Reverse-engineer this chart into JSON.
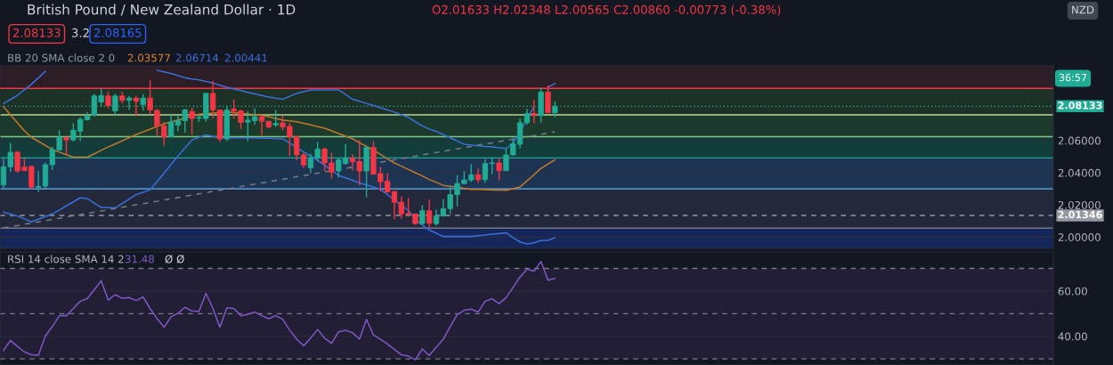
{
  "chart_data": [
    {
      "type": "candlestick",
      "title": "British Pound / New Zealand Dollar · 1D",
      "annotations": [
        "O2.01633 H2.02348 L2.00565 C2.00860 -0.00773 (-0.38%)",
        "2.08133",
        "3.2",
        "2.08165",
        "BB 20 SMA close 2 0",
        "2.03577",
        "2.06714",
        "2.00441",
        "36:57",
        "NZD"
      ],
      "categories": [
        null,
        null,
        null,
        null,
        null,
        null,
        null,
        null,
        null,
        null,
        null,
        null,
        null,
        null,
        null,
        null,
        null,
        null,
        null,
        null,
        null,
        null,
        null,
        null,
        null,
        null,
        null,
        null,
        null,
        null,
        null,
        null,
        null,
        null,
        null,
        null,
        null,
        null,
        null,
        null,
        null,
        null,
        null,
        null,
        null,
        null,
        null,
        null,
        null,
        null,
        null,
        null,
        null,
        null,
        null,
        null,
        null,
        null,
        null,
        null,
        null,
        null,
        null,
        null,
        null,
        null,
        null,
        null,
        null,
        null,
        null,
        null,
        null,
        null,
        null,
        null,
        null,
        null,
        null,
        null
      ],
      "ohlc": [
        [
          2.0324,
          2.0497,
          2.0297,
          2.0437
        ],
        [
          2.0437,
          2.0584,
          2.0404,
          2.0527
        ],
        [
          2.0527,
          2.0537,
          2.04,
          2.0411
        ],
        [
          2.0435,
          2.0488,
          2.0408,
          2.0415
        ],
        [
          2.044,
          2.0444,
          2.0301,
          2.0311
        ],
        [
          2.031,
          2.041,
          2.028,
          2.0315
        ],
        [
          2.0317,
          2.0464,
          2.0301,
          2.045
        ],
        [
          2.045,
          2.0564,
          2.0417,
          2.0544
        ],
        [
          2.0541,
          2.0664,
          2.0537,
          2.0621
        ],
        [
          2.062,
          2.062,
          2.0507,
          2.0604
        ],
        [
          2.0604,
          2.0707,
          2.0595,
          2.0664
        ],
        [
          2.0658,
          2.0744,
          2.0597,
          2.0731
        ],
        [
          2.0729,
          2.0777,
          2.0724,
          2.0755
        ],
        [
          2.0757,
          2.089,
          2.075,
          2.0877
        ],
        [
          2.084,
          2.092,
          2.081,
          2.088
        ],
        [
          2.0877,
          2.0904,
          2.08,
          2.0817
        ],
        [
          2.0784,
          2.089,
          2.0757,
          2.0877
        ],
        [
          2.0877,
          2.0904,
          2.083,
          2.085
        ],
        [
          2.085,
          2.0877,
          2.079,
          2.0864
        ],
        [
          2.0864,
          2.0877,
          2.0751,
          2.0844
        ],
        [
          2.0824,
          2.089,
          2.0784,
          2.0864
        ],
        [
          2.0864,
          2.0977,
          2.0764,
          2.079
        ],
        [
          2.0787,
          2.0797,
          2.0624,
          2.0691
        ],
        [
          2.0691,
          2.0717,
          2.0568,
          2.0621
        ],
        [
          2.0624,
          2.076,
          2.062,
          2.0715
        ],
        [
          2.0697,
          2.0757,
          2.0657,
          2.0724
        ],
        [
          2.0724,
          2.0797,
          2.0651,
          2.0791
        ],
        [
          2.0781,
          2.0804,
          2.0637,
          2.0737
        ],
        [
          2.074,
          2.076,
          2.0715,
          2.0744
        ],
        [
          2.0737,
          2.0897,
          2.0717,
          2.0893
        ],
        [
          2.0893,
          2.097,
          2.0737,
          2.079
        ],
        [
          2.079,
          2.079,
          2.0591,
          2.061
        ],
        [
          2.061,
          2.0817,
          2.0597,
          2.079
        ],
        [
          2.0797,
          2.0857,
          2.0737,
          2.0784
        ],
        [
          2.0784,
          2.0791,
          2.0671,
          2.0713
        ],
        [
          2.0714,
          2.0781,
          2.0597,
          2.0727
        ],
        [
          2.0724,
          2.0801,
          2.0697,
          2.0748
        ],
        [
          2.0748,
          2.076,
          2.0631,
          2.072
        ],
        [
          2.072,
          2.072,
          2.0675,
          2.0684
        ],
        [
          2.0697,
          2.0791,
          2.0684,
          2.0707
        ],
        [
          2.071,
          2.0755,
          2.0664,
          2.0684
        ],
        [
          2.0688,
          2.071,
          2.0504,
          2.0624
        ],
        [
          2.0624,
          2.0624,
          2.0477,
          2.0511
        ],
        [
          2.0511,
          2.0524,
          2.0431,
          2.0448
        ],
        [
          2.0431,
          2.0517,
          2.0397,
          2.0491
        ],
        [
          2.0491,
          2.0591,
          2.0471,
          2.0547
        ],
        [
          2.0547,
          2.0557,
          2.0413,
          2.0461
        ],
        [
          2.0461,
          2.0524,
          2.0364,
          2.0404
        ],
        [
          2.0411,
          2.0496,
          2.0371,
          2.048
        ],
        [
          2.0457,
          2.0577,
          2.045,
          2.0491
        ],
        [
          2.0491,
          2.0517,
          2.0416,
          2.0468
        ],
        [
          2.047,
          2.0604,
          2.0321,
          2.0411
        ],
        [
          2.0411,
          2.0564,
          2.0247,
          2.0557
        ],
        [
          2.0557,
          2.0597,
          2.0391,
          2.0391
        ],
        [
          2.0395,
          2.0437,
          2.0284,
          2.0344
        ],
        [
          2.0347,
          2.0397,
          2.0277,
          2.028
        ],
        [
          2.0284,
          2.0284,
          2.0111,
          2.0217
        ],
        [
          2.0217,
          2.0251,
          2.0115,
          2.0144
        ],
        [
          2.0147,
          2.0244,
          2.0137,
          2.0141
        ],
        [
          2.0144,
          2.0144,
          2.0077,
          2.0084
        ],
        [
          2.0084,
          2.0197,
          2.0077,
          2.0164
        ],
        [
          2.01633,
          2.02348,
          2.00565,
          2.0086
        ],
        [
          2.0084,
          2.0171,
          2.0071,
          2.0131
        ],
        [
          2.0131,
          2.0237,
          2.0131,
          2.0177
        ],
        [
          2.0177,
          2.0317,
          2.0144,
          2.0264
        ],
        [
          2.0264,
          2.0384,
          2.0191,
          2.0333
        ],
        [
          2.0333,
          2.041,
          2.0328,
          2.0355
        ],
        [
          2.0355,
          2.0453,
          2.0344,
          2.0387
        ],
        [
          2.0387,
          2.0427,
          2.0337,
          2.0357
        ],
        [
          2.0357,
          2.0484,
          2.0337,
          2.0457
        ],
        [
          2.0457,
          2.0497,
          2.0391,
          2.0461
        ],
        [
          2.0461,
          2.0488,
          2.0351,
          2.0413
        ],
        [
          2.0413,
          2.0551,
          2.0413,
          2.0511
        ],
        [
          2.0511,
          2.0611,
          2.0507,
          2.0581
        ],
        [
          2.0577,
          2.0737,
          2.0551,
          2.0711
        ],
        [
          2.0711,
          2.0797,
          2.0697,
          2.0768
        ],
        [
          2.0768,
          2.0853,
          2.0707,
          2.0755
        ],
        [
          2.0755,
          2.0931,
          2.0711,
          2.0901
        ],
        [
          2.0901,
          2.0941,
          2.0773,
          2.0773
        ],
        [
          2.0773,
          2.0844,
          2.0744,
          2.08133
        ]
      ],
      "colors": [
        "#22ab94",
        "#22ab94",
        "#f23645",
        "#f23645",
        "#f23645",
        "#22ab94",
        "#22ab94",
        "#22ab94",
        "#22ab94",
        "#f23645",
        "#22ab94",
        "#22ab94",
        "#22ab94",
        "#22ab94",
        "#22ab94",
        "#f23645",
        "#22ab94",
        "#f23645",
        "#22ab94",
        "#f23645",
        "#22ab94",
        "#f23645",
        "#f23645",
        "#f23645",
        "#22ab94",
        "#22ab94",
        "#22ab94",
        "#f23645",
        "#22ab94",
        "#22ab94",
        "#f23645",
        "#f23645",
        "#22ab94",
        "#f23645",
        "#f23645",
        "#22ab94",
        "#22ab94",
        "#f23645",
        "#f23645",
        "#22ab94",
        "#f23645",
        "#f23645",
        "#f23645",
        "#f23645",
        "#22ab94",
        "#22ab94",
        "#f23645",
        "#f23645",
        "#22ab94",
        "#22ab94",
        "#f23645",
        "#f23645",
        "#22ab94",
        "#f23645",
        "#f23645",
        "#f23645",
        "#f23645",
        "#f23645",
        "#f23645",
        "#f23645",
        "#22ab94",
        "#f23645",
        "#22ab94",
        "#22ab94",
        "#22ab94",
        "#22ab94",
        "#22ab94",
        "#22ab94",
        "#f23645",
        "#22ab94",
        "#22ab94",
        "#f23645",
        "#22ab94",
        "#22ab94",
        "#22ab94",
        "#22ab94",
        "#f23645",
        "#22ab94",
        "#f23645",
        "#22ab94"
      ],
      "series": [
        {
          "type": "line",
          "color": "#3a6fd8",
          "values": [
            2.083,
            2.0855,
            2.088,
            2.0915,
            2.095,
            2.099,
            2.103,
            null,
            null,
            null,
            null,
            null,
            null,
            null,
            null,
            null,
            null,
            null,
            null,
            null,
            null,
            null,
            2.1037,
            2.1027,
            2.1017,
            2.1003,
            2.099,
            2.0983,
            2.0977,
            2.0967,
            2.0957,
            2.0944,
            2.0931,
            2.092,
            2.091,
            2.09,
            2.089,
            2.088,
            2.087,
            2.0863,
            2.0857,
            2.0875,
            2.0893,
            2.0904,
            2.0915,
            2.0915,
            2.0915,
            2.0915,
            2.0915,
            2.0886,
            2.0857,
            2.0844,
            2.0831,
            2.0818,
            2.0804,
            2.079,
            2.0777,
            2.076,
            2.0744,
            2.0717,
            2.0691,
            2.0671,
            2.0657,
            2.0637,
            2.0617,
            2.0597,
            2.0577,
            2.0572,
            2.0567,
            2.0563,
            2.056,
            2.0555,
            2.0551,
            2.0584,
            2.0651,
            2.0731,
            2.0811,
            null,
            2.0931,
            2.0955
          ]
        },
        {
          "type": "line",
          "color": "#c0782c",
          "values": [
            2.081,
            2.076,
            2.071,
            2.066,
            2.062,
            2.0595,
            2.057,
            2.0544,
            2.0528,
            2.0512,
            2.0497,
            2.0497,
            2.0497,
            2.0518,
            2.0539,
            2.056,
            2.0579,
            2.0598,
            2.0618,
            2.0637,
            2.0654,
            2.0671,
            2.0687,
            2.0704,
            2.0716,
            2.0728,
            2.074,
            2.0752,
            2.0764,
            2.0767,
            2.0771,
            2.0774,
            2.0777,
            2.0773,
            2.0769,
            2.0765,
            2.0761,
            2.0757,
            2.0747,
            2.0737,
            2.0727,
            2.0722,
            2.0717,
            2.0707,
            2.0697,
            2.0687,
            2.0677,
            2.066,
            2.0644,
            2.0627,
            2.0611,
            2.0587,
            2.0564,
            2.054,
            2.0514,
            2.0487,
            2.0461,
            2.0441,
            2.042,
            2.04,
            2.038,
            2.0358,
            2.034,
            2.0322,
            2.0316,
            2.031,
            2.0303,
            2.0297,
            2.0296,
            2.0295,
            2.0293,
            2.0292,
            2.0291,
            2.0301,
            2.0312,
            2.035,
            2.0388,
            2.0427,
            2.0454,
            2.048
          ]
        },
        {
          "type": "line",
          "color": "#3a6fd8",
          "values": [
            2.0155,
            2.0143,
            2.0131,
            2.0113,
            2.0095,
            2.0111,
            2.0128,
            2.0144,
            2.0169,
            2.0194,
            2.0219,
            2.0244,
            2.024,
            2.0212,
            2.0184,
            2.0183,
            2.0181,
            2.0209,
            2.0236,
            2.0264,
            2.0279,
            2.0293,
            2.0345,
            2.0397,
            2.0451,
            2.0504,
            2.0554,
            2.0604,
            2.062,
            2.0635,
            2.0626,
            2.0617,
            2.0617,
            2.0617,
            2.0617,
            2.0617,
            2.0616,
            2.0615,
            2.0614,
            2.0612,
            2.0611,
            2.0584,
            2.0557,
            2.053,
            2.0504,
            2.0477,
            2.0446,
            2.0415,
            2.0384,
            2.0368,
            2.0353,
            2.0337,
            2.0324,
            2.031,
            2.0297,
            2.0264,
            2.023,
            2.0197,
            2.0166,
            2.011,
            2.0075,
            2.0044,
            2.0024,
            2.0004,
            2.0004,
            2.0004,
            2.0004,
            2.0004,
            2.0009,
            2.0013,
            2.0018,
            2.0022,
            2.0027,
            1.9997,
            1.997,
            1.9957,
            1.9965,
            1.998,
            1.998,
            1.9997
          ]
        },
        {
          "type": "line",
          "color": "#787b86",
          "line_style": "dashed",
          "values": [
            2.0057,
            2.0065,
            2.0072,
            2.008,
            2.0087,
            2.0095,
            2.0102,
            2.011,
            2.0117,
            2.0125,
            2.0133,
            2.014,
            2.0148,
            2.0155,
            2.0163,
            2.017,
            2.0178,
            2.0186,
            2.0193,
            2.0201,
            2.0208,
            2.0216,
            2.0223,
            2.0231,
            2.0238,
            2.0246,
            2.0254,
            2.0261,
            2.0269,
            2.0276,
            2.0284,
            2.0291,
            2.0299,
            2.0306,
            2.0314,
            2.0322,
            2.0329,
            2.0337,
            2.0344,
            2.0352,
            2.0359,
            2.0367,
            2.0375,
            2.0382,
            2.039,
            2.0397,
            2.0405,
            2.0412,
            2.042,
            2.0427,
            2.0435,
            2.0443,
            null,
            null,
            2.0465,
            2.0473,
            2.048,
            2.0488,
            2.0495,
            2.0503,
            2.0511,
            2.0518,
            2.0526,
            2.0533,
            2.0541,
            2.0548,
            2.0556,
            2.0563,
            2.0571,
            2.0579,
            2.0586,
            2.0594,
            2.0601,
            2.0609,
            2.0616,
            2.0624,
            2.0631,
            2.0639,
            2.0647,
            2.0654
          ]
        }
      ],
      "ylim": [
        1.993,
        2.1064
      ],
      "yticks": [
        {
          "value": 2.0,
          "label": "2.00000"
        },
        {
          "value": 2.02,
          "label": "2.02000"
        },
        {
          "value": 2.04,
          "label": "2.04000"
        },
        {
          "value": 2.06,
          "label": "2.06000"
        }
      ],
      "bands": [
        {
          "axis": "y",
          "from": 2.0924,
          "to": 2.1064,
          "color": "#2c1d26"
        },
        {
          "axis": "y",
          "from": 2.076,
          "to": 2.0924,
          "color": "#1e3126"
        },
        {
          "axis": "y",
          "from": 2.0624,
          "to": 2.076,
          "color": "#1b3a2b"
        },
        {
          "axis": "y",
          "from": 2.0492,
          "to": 2.0624,
          "color": "#123d3a"
        },
        {
          "axis": "y",
          "from": 2.03,
          "to": 2.0492,
          "color": "#1d3452"
        },
        {
          "axis": "y",
          "from": 2.0056,
          "to": 2.03,
          "color": "#23283a"
        },
        {
          "axis": "y",
          "from": 1.993,
          "to": 2.0056,
          "color": "#15265a"
        }
      ],
      "ref_lines": [
        {
          "axis": "y",
          "value": 2.0924,
          "color": "#f23645"
        },
        {
          "axis": "y",
          "value": 2.076,
          "color": "#b7d99a"
        },
        {
          "axis": "y",
          "value": 2.0624,
          "color": "#81c784"
        },
        {
          "axis": "y",
          "value": 2.0492,
          "color": "#26a69a"
        },
        {
          "axis": "y",
          "value": 2.03,
          "color": "#64b5f6"
        },
        {
          "axis": "y",
          "value": 2.0056,
          "color": "#787b86"
        },
        {
          "axis": "y",
          "value": 2.08133,
          "label": "2.08133",
          "color": "#22ab94",
          "line_style": "dotted"
        },
        {
          "axis": "y",
          "value": 2.01346,
          "label": "2.01346",
          "color": "#9598a1",
          "line_style": "dashed"
        }
      ],
      "grid": "y",
      "tick_labels": "y"
    },
    {
      "type": "line",
      "annotations": [
        "RSI 14 close SMA 14 2",
        "31.48",
        "Ø Ø"
      ],
      "categories": [
        null,
        null,
        null,
        null,
        null,
        null,
        null,
        null,
        null,
        null,
        null,
        null,
        null,
        null,
        null,
        null,
        null,
        null,
        null,
        null,
        null,
        null,
        null,
        null,
        null,
        null,
        null,
        null,
        null,
        null,
        null,
        null,
        null,
        null,
        null,
        null,
        null,
        null,
        null,
        null,
        null,
        null,
        null,
        null,
        null,
        null,
        null,
        null,
        null,
        null,
        null,
        null,
        null,
        null,
        null,
        null,
        null,
        null,
        null,
        null,
        null,
        null,
        null,
        null,
        null,
        null,
        null,
        null,
        null,
        null,
        null,
        null,
        null,
        null,
        null,
        null,
        null,
        null,
        null,
        null
      ],
      "series": [
        {
          "color": "#7e57c2",
          "values": [
            33.7,
            38.2,
            35.5,
            33.1,
            31.8,
            31.6,
            40.1,
            44.3,
            49.1,
            49.1,
            52.3,
            55.5,
            56.6,
            60.6,
            64.6,
            56.0,
            58.4,
            56.8,
            57.1,
            55.8,
            57.4,
            52.3,
            47.8,
            44.0,
            48.6,
            50.2,
            52.8,
            51.2,
            51.0,
            59.0,
            52.3,
            44.0,
            52.6,
            52.3,
            49.1,
            49.7,
            50.7,
            49.1,
            47.8,
            49.1,
            47.5,
            42.7,
            38.7,
            35.8,
            39.2,
            43.0,
            39.2,
            36.9,
            42.0,
            42.7,
            41.6,
            38.7,
            47.5,
            40.6,
            38.7,
            36.6,
            34.2,
            31.8,
            31.2,
            29.6,
            34.4,
            31.5,
            35.2,
            38.7,
            44.3,
            49.6,
            51.5,
            52.0,
            50.7,
            55.5,
            56.6,
            54.4,
            57.1,
            61.6,
            66.2,
            69.6,
            68.8,
            73.1,
            64.8,
            65.6
          ]
        }
      ],
      "ylim": [
        27.3,
        77.3
      ],
      "yticks": [
        {
          "value": 40,
          "label": "40.00"
        },
        {
          "value": 60,
          "label": "60.00"
        }
      ],
      "bands": [
        {
          "axis": "y",
          "from": 30,
          "to": 70,
          "color": "#211e36"
        }
      ],
      "ref_lines": [
        {
          "axis": "y",
          "value": 70,
          "color": "#787b86",
          "line_style": "dashed"
        },
        {
          "axis": "y",
          "value": 50,
          "color": "#787b86",
          "line_style": "dashed"
        },
        {
          "axis": "y",
          "value": 30,
          "color": "#787b86",
          "line_style": "dashed"
        }
      ],
      "grid": "y",
      "tick_labels": "y"
    }
  ]
}
